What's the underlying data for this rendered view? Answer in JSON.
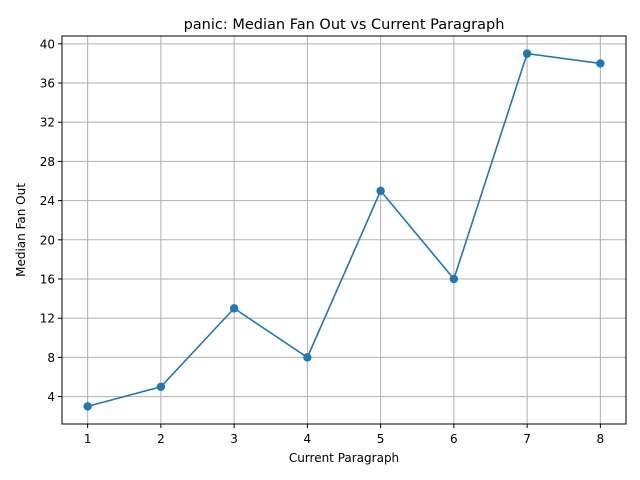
{
  "chart_data": {
    "type": "line",
    "title": "panic: Median Fan Out vs Current Paragraph",
    "xlabel": "Current Paragraph",
    "ylabel": "Median Fan Out",
    "x": [
      1,
      2,
      3,
      4,
      5,
      6,
      7,
      8
    ],
    "series": [
      {
        "values": [
          3,
          5,
          13,
          8,
          25,
          16,
          39,
          38
        ]
      }
    ],
    "xticks": [
      1,
      2,
      3,
      4,
      5,
      6,
      7,
      8
    ],
    "yticks": [
      4,
      8,
      12,
      16,
      20,
      24,
      28,
      32,
      36,
      40
    ],
    "xlim": [
      0.65,
      8.35
    ],
    "ylim": [
      1.2,
      40.8
    ],
    "grid": true,
    "marker": "circle",
    "colors": {
      "line": "#1f77b4",
      "grid": "#b0b0b0",
      "axes": "#000000"
    }
  }
}
